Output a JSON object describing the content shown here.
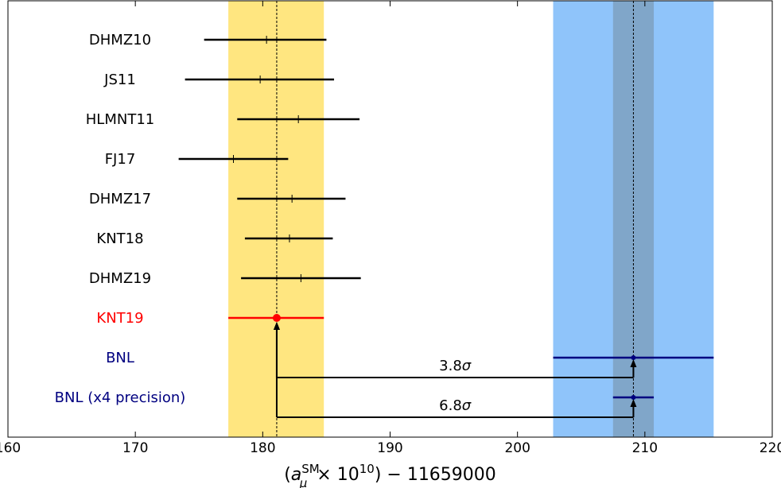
{
  "chart_data": {
    "type": "errorbar",
    "xlabel": "(a_μ^SM × 10^10) − 11659000",
    "xlabel_parts": {
      "a": "a",
      "mu": "μ",
      "sm": "SM",
      "times": "× 10",
      "exp": "10",
      "rest": ") − 11659000",
      "open": "("
    },
    "xlim": [
      160,
      220
    ],
    "xticks": [
      "160",
      "170",
      "180",
      "190",
      "200",
      "210",
      "220"
    ],
    "grid": false,
    "entries": [
      {
        "label": "DHMZ10",
        "value": 180.3,
        "low": 175.4,
        "high": 185.0,
        "color": "#000000"
      },
      {
        "label": "JS11",
        "value": 179.8,
        "low": 173.9,
        "high": 185.6,
        "color": "#000000"
      },
      {
        "label": "HLMNT11",
        "value": 182.8,
        "low": 178.0,
        "high": 187.6,
        "color": "#000000"
      },
      {
        "label": "FJ17",
        "value": 177.7,
        "low": 173.4,
        "high": 182.0,
        "color": "#000000"
      },
      {
        "label": "DHMZ17",
        "value": 182.3,
        "low": 178.0,
        "high": 186.5,
        "color": "#000000"
      },
      {
        "label": "KNT18",
        "value": 182.1,
        "low": 178.6,
        "high": 185.5,
        "color": "#000000"
      },
      {
        "label": "DHMZ19",
        "value": 183.0,
        "low": 178.3,
        "high": 187.7,
        "color": "#000000"
      },
      {
        "label": "KNT19",
        "value": 181.1,
        "low": 177.3,
        "high": 184.8,
        "color": "#ff0000"
      },
      {
        "label": "BNL",
        "value": 209.1,
        "low": 202.8,
        "high": 215.4,
        "color": "#000080"
      },
      {
        "label": "BNL (x4 precision)",
        "value": 209.1,
        "low": 207.5,
        "high": 210.7,
        "color": "#000080"
      }
    ],
    "bands": [
      {
        "low": 177.3,
        "high": 184.8,
        "color": "#ffe680"
      },
      {
        "low": 202.8,
        "high": 215.4,
        "color": "#8fc4fa"
      },
      {
        "low": 207.5,
        "high": 210.7,
        "color": "#80a6c9"
      }
    ],
    "reference_lines": [
      181.1,
      209.1
    ],
    "annotations": [
      {
        "text": "3.8σ",
        "num": "3.8",
        "sym": "σ",
        "from": 181.1,
        "to": 209.1,
        "row": "BNL"
      },
      {
        "text": "6.8σ",
        "num": "6.8",
        "sym": "σ",
        "from": 181.1,
        "to": 209.1,
        "row": "BNL (x4 precision)"
      }
    ]
  }
}
